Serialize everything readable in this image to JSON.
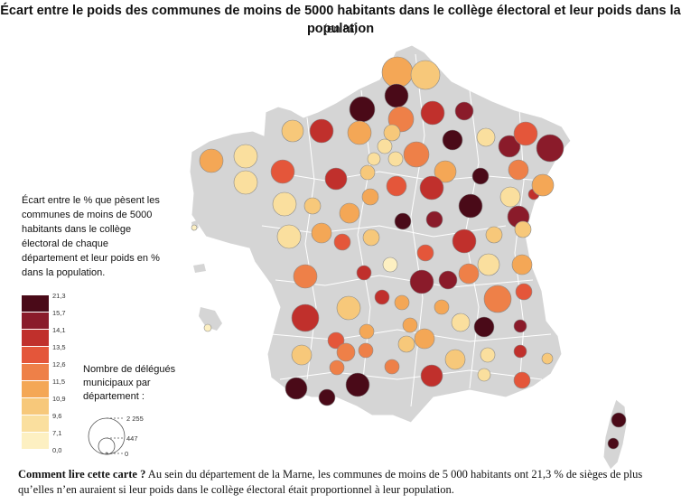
{
  "title": "Écart entre le poids des communes de moins de 5000 habitants dans le collège électoral et leur poids dans la population",
  "subtitle": "(en %)",
  "legend": {
    "title": "Écart entre le % que pèsent les communes de moins de 5000 habitants dans le collège électoral de chaque département et leur poids en % dans la population.",
    "ticks": [
      "21,3",
      "15,7",
      "14,1",
      "13,5",
      "12,6",
      "11,5",
      "10,9",
      "9,6",
      "7,1",
      "0,0"
    ],
    "colors": [
      "#4a0a18",
      "#8a1b2a",
      "#c0302c",
      "#e4563a",
      "#ee8048",
      "#f4a756",
      "#f7c87a",
      "#fadf9e",
      "#fdf0c2"
    ]
  },
  "size_legend": {
    "title": "Nombre de délégués municipaux par département :",
    "values": [
      "2 255",
      "447",
      "0"
    ]
  },
  "footnote": {
    "bold": "Comment lire cette carte ?",
    "text": " Au sein du département de la Marne, les communes de moins de 5 000 habitants ont 21,3 % de sièges de plus qu’elles n’en auraient si leur poids dans le collège électoral était proportionnel à leur population."
  }
}
